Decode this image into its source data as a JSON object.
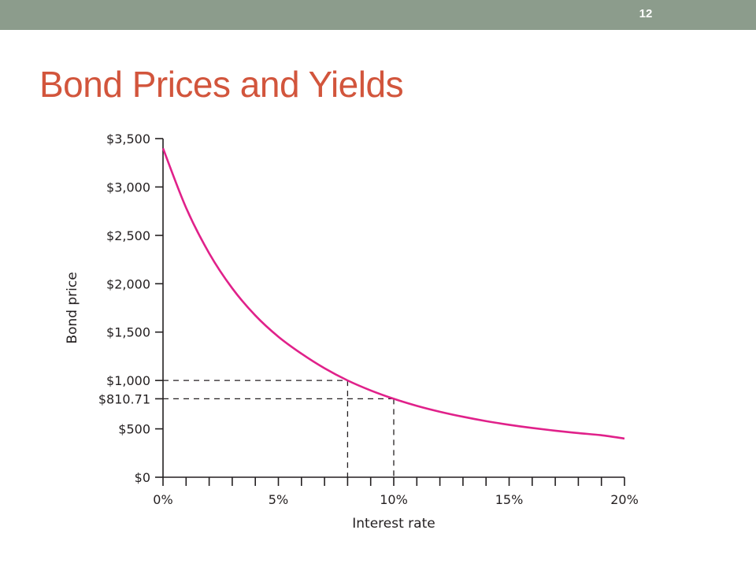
{
  "slide": {
    "number": "12",
    "title": "Bond Prices and Yields"
  },
  "colors": {
    "top_bar": "#8c9c8c",
    "title": "#d2553c",
    "curve": "#e0218a",
    "axis": "#231f20"
  },
  "chart_data": {
    "type": "line",
    "xlabel": "Interest rate",
    "ylabel": "Bond price",
    "xlim": [
      0,
      0.2
    ],
    "ylim": [
      0,
      3500
    ],
    "x_ticks": [
      {
        "value": 0.0,
        "label": "0%"
      },
      {
        "value": 0.05,
        "label": "5%"
      },
      {
        "value": 0.1,
        "label": "10%"
      },
      {
        "value": 0.15,
        "label": "15%"
      },
      {
        "value": 0.2,
        "label": "20%"
      }
    ],
    "x_minor_step": 0.01,
    "y_ticks": [
      {
        "value": 0,
        "label": "$0"
      },
      {
        "value": 500,
        "label": "$500"
      },
      {
        "value": 810.71,
        "label": "$810.71"
      },
      {
        "value": 1000,
        "label": "$1,000"
      },
      {
        "value": 1500,
        "label": "$1,500"
      },
      {
        "value": 2000,
        "label": "$2,000"
      },
      {
        "value": 2500,
        "label": "$2,500"
      },
      {
        "value": 3000,
        "label": "$3,000"
      },
      {
        "value": 3500,
        "label": "$3,500"
      }
    ],
    "series": [
      {
        "x": [
          0.0,
          0.01,
          0.02,
          0.03,
          0.04,
          0.05,
          0.06,
          0.07,
          0.08,
          0.09,
          0.1,
          0.11,
          0.12,
          0.13,
          0.14,
          0.15,
          0.16,
          0.17,
          0.18,
          0.19,
          0.2
        ],
        "y": [
          3400,
          2785,
          2315,
          1953,
          1672,
          1452,
          1277,
          1126,
          1000,
          897,
          810.71,
          738,
          677,
          625,
          580,
          542,
          509,
          481,
          456,
          434,
          400
        ]
      }
    ],
    "reference_points": [
      {
        "x": 0.08,
        "y": 1000
      },
      {
        "x": 0.1,
        "y": 810.71
      }
    ],
    "grid": false,
    "legend": "none"
  }
}
